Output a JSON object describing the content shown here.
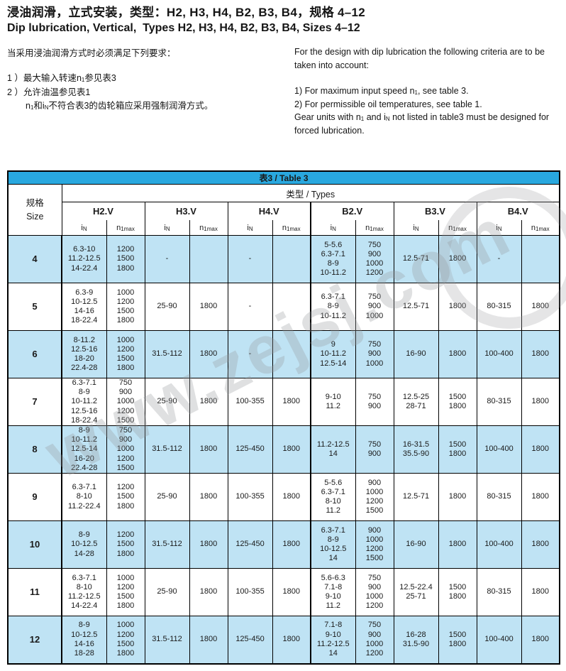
{
  "header": {
    "title_zh": "浸油润滑，立式安装，类型：H2, H3, H4, B2, B3, B4，规格 4–12",
    "title_en": "Dip lubrication, Vertical,  Types H2, H3, H4, B2, B3, B4, Sizes 4–12"
  },
  "sym": {
    "n": "n",
    "one": "1",
    "i": "i",
    "N": "N"
  },
  "intro_zh": {
    "heading": "当采用浸油润滑方式时必须满足下列要求：",
    "item1_a": "1 ）最大输入转速",
    "item1_b": "参见表3",
    "item2": "2 ）允许油温参见表1",
    "item3_a": "和",
    "item3_b": "不符合表3的齿轮箱应采用强制润滑方式。"
  },
  "intro_en": {
    "p1": "For the design with dip lubrication the following criteria are to be taken into account:",
    "item1_a": "1) For maximum input speed ",
    "item1_b": ", see table 3.",
    "item2": "2) For permissible oil temperatures, see table 1.",
    "tail_a": "Gear units with ",
    "tail_b": " and ",
    "tail_c": " not listed in table3 must be designed for forced lubrication."
  },
  "table": {
    "title": "表3 / Table 3",
    "types_label": "类型 / Types",
    "size_zh": "规格",
    "size_en": "Size",
    "groups": [
      "H2.V",
      "H3.V",
      "H4.V",
      "B2.V",
      "B3.V",
      "B4.V"
    ],
    "col_in_base": "i",
    "col_in_sub": "N",
    "col_n_base": "n",
    "col_n_sub": "1max",
    "rows": [
      {
        "size": "4",
        "cells": [
          [
            "6.3-10\n11.2-12.5\n14-22.4",
            "1200\n1500\n1800"
          ],
          [
            "-",
            ""
          ],
          [
            "-",
            ""
          ],
          [
            "5-5.6\n6.3-7.1\n8-9\n10-11.2",
            "750\n900\n1000\n1200"
          ],
          [
            "12.5-71",
            "1800"
          ],
          [
            "-",
            ""
          ]
        ]
      },
      {
        "size": "5",
        "cells": [
          [
            "6.3-9\n10-12.5\n14-16\n18-22.4",
            "1000\n1200\n1500\n1800"
          ],
          [
            "25-90",
            "1800"
          ],
          [
            "-",
            ""
          ],
          [
            "6.3-7.1\n8-9\n10-11.2",
            "750\n900\n1000"
          ],
          [
            "12.5-71",
            "1800"
          ],
          [
            "80-315",
            "1800"
          ]
        ]
      },
      {
        "size": "6",
        "cells": [
          [
            "8-11.2\n12.5-16\n18-20\n22.4-28",
            "1000\n1200\n1500\n1800"
          ],
          [
            "31.5-112",
            "1800"
          ],
          [
            "-",
            ""
          ],
          [
            "9\n10-11.2\n12.5-14",
            "750\n900\n1000"
          ],
          [
            "16-90",
            "1800"
          ],
          [
            "100-400",
            "1800"
          ]
        ]
      },
      {
        "size": "7",
        "cells": [
          [
            "6.3-7.1\n8-9\n10-11.2\n12.5-16\n18-22.4",
            "750\n900\n1000\n1200\n1500"
          ],
          [
            "25-90",
            "1800"
          ],
          [
            "100-355",
            "1800"
          ],
          [
            "9-10\n11.2",
            "750\n900"
          ],
          [
            "12.5-25\n28-71",
            "1500\n1800"
          ],
          [
            "80-315",
            "1800"
          ]
        ]
      },
      {
        "size": "8",
        "cells": [
          [
            "8-9\n10-11.2\n12.5-14\n16-20\n22.4-28",
            "750\n900\n1000\n1200\n1500"
          ],
          [
            "31.5-112",
            "1800"
          ],
          [
            "125-450",
            "1800"
          ],
          [
            "11.2-12.5\n14",
            "750\n900"
          ],
          [
            "16-31.5\n35.5-90",
            "1500\n1800"
          ],
          [
            "100-400",
            "1800"
          ]
        ]
      },
      {
        "size": "9",
        "cells": [
          [
            "6.3-7.1\n8-10\n11.2-22.4",
            "1200\n1500\n1800"
          ],
          [
            "25-90",
            "1800"
          ],
          [
            "100-355",
            "1800"
          ],
          [
            "5-5.6\n6.3-7.1\n8-10\n11.2",
            "900\n1000\n1200\n1500"
          ],
          [
            "12.5-71",
            "1800"
          ],
          [
            "80-315",
            "1800"
          ]
        ]
      },
      {
        "size": "10",
        "cells": [
          [
            "8-9\n10-12.5\n14-28",
            "1200\n1500\n1800"
          ],
          [
            "31.5-112",
            "1800"
          ],
          [
            "125-450",
            "1800"
          ],
          [
            "6.3-7.1\n8-9\n10-12.5\n14",
            "900\n1000\n1200\n1500"
          ],
          [
            "16-90",
            "1800"
          ],
          [
            "100-400",
            "1800"
          ]
        ]
      },
      {
        "size": "11",
        "cells": [
          [
            "6.3-7.1\n8-10\n11.2-12.5\n14-22.4",
            "1000\n1200\n1500\n1800"
          ],
          [
            "25-90",
            "1800"
          ],
          [
            "100-355",
            "1800"
          ],
          [
            "5.6-6.3\n7.1-8\n9-10\n11.2",
            "750\n900\n1000\n1200"
          ],
          [
            "12.5-22.4\n25-71",
            "1500\n1800"
          ],
          [
            "80-315",
            "1800"
          ]
        ]
      },
      {
        "size": "12",
        "cells": [
          [
            "8-9\n10-12.5\n14-16\n18-28",
            "1000\n1200\n1500\n1800"
          ],
          [
            "31.5-112",
            "1800"
          ],
          [
            "125-450",
            "1800"
          ],
          [
            "7.1-8\n9-10\n11.2-12.5\n14",
            "750\n900\n1000\n1200"
          ],
          [
            "16-28\n31.5-90",
            "1500\n1800"
          ],
          [
            "100-400",
            "1800"
          ]
        ]
      }
    ]
  },
  "watermark": {
    "text": "www.zejsj.com"
  },
  "colors": {
    "accent_blue": "#29a8df",
    "row_blue": "#bfe3f4"
  }
}
